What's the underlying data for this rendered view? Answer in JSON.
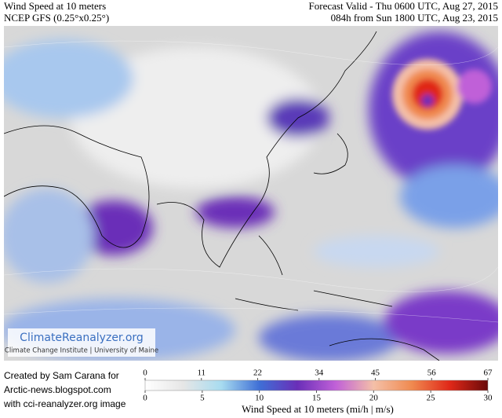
{
  "header": {
    "title": "Wind Speed at 10 meters",
    "model": "NCEP GFS (0.25°x0.25°)",
    "valid": "Forecast Valid - Thu 0600 UTC, Aug 27, 2015",
    "init": "084h from Sun 1800 UTC, Aug 23, 2015"
  },
  "logo": {
    "name": "ClimateReanalyzer.org",
    "institute": "Climate Change Institute | University of Maine"
  },
  "credit": [
    "Created by Sam Carana for",
    "Arctic-news.blogspot.com",
    "with cci-reanalyzer.org image"
  ],
  "colorbar": {
    "label": "Wind Speed at 10 meters (mi/h | m/s)",
    "mph_range": [
      0,
      67
    ],
    "mph_ticks": [
      0,
      11,
      22,
      34,
      45,
      56,
      67
    ],
    "ms_range": [
      0,
      30
    ],
    "ms_ticks": [
      0,
      5,
      10,
      15,
      20,
      25,
      30
    ],
    "colors": [
      "#ffffff",
      "#e6e6e6",
      "#a8dcf0",
      "#3f6fd6",
      "#6a2fb8",
      "#c060d8",
      "#f4c0a8",
      "#f08a50",
      "#e02818",
      "#6a0a0a"
    ]
  }
}
